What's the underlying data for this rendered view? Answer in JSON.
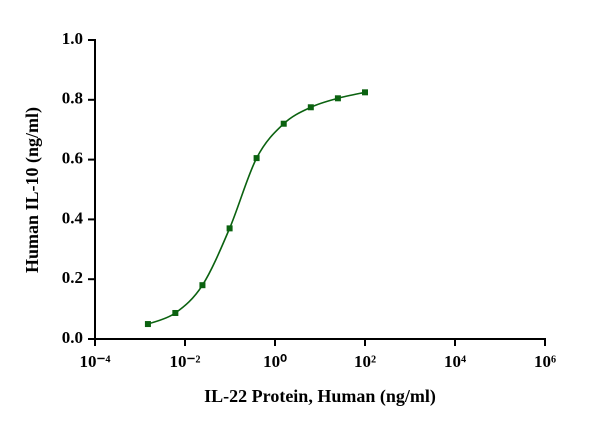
{
  "chart_data": {
    "type": "scatter-fit",
    "x_label": "IL-22 Protein, Human  (ng/ml)",
    "y_label": "Human IL-10 (ng/ml)",
    "x": [
      0.0015,
      0.0061,
      0.0244,
      0.098,
      0.39,
      1.5625,
      6.25,
      25,
      100
    ],
    "values": [
      0.05,
      0.087,
      0.18,
      0.37,
      0.605,
      0.72,
      0.775,
      0.805,
      0.825
    ],
    "color": "#0b6210",
    "x_log": true,
    "xlim": [
      0.0001,
      1000000
    ],
    "xticks": [
      {
        "value": 0.0001,
        "label": "10⁻⁴"
      },
      {
        "value": 0.01,
        "label": "10⁻²"
      },
      {
        "value": 1,
        "label": "10⁰"
      },
      {
        "value": 100,
        "label": "10²"
      },
      {
        "value": 10000,
        "label": "10⁴"
      },
      {
        "value": 1000000,
        "label": "10⁶"
      }
    ],
    "ylim": [
      0,
      1
    ],
    "yticks": [
      {
        "value": 0,
        "label": "0.0"
      },
      {
        "value": 0.2,
        "label": "0.2"
      },
      {
        "value": 0.4,
        "label": "0.4"
      },
      {
        "value": 0.6,
        "label": "0.6"
      },
      {
        "value": 0.8,
        "label": "0.8"
      },
      {
        "value": 1,
        "label": "1.0"
      }
    ]
  }
}
